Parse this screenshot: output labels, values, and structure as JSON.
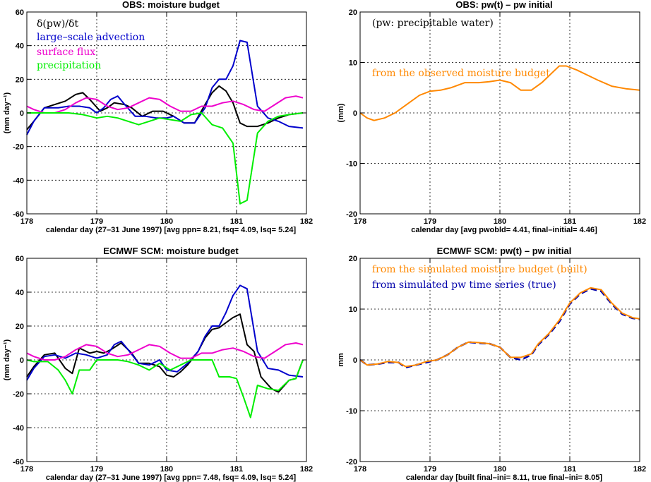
{
  "chart_data": [
    {
      "type": "line",
      "title": "OBS: moisture budget",
      "xlabel": "calendar day (27–31 June 1997)  [avg ppn=  8.21, fsq=  4.09, lsq=  5.24]",
      "ylabel": "(mm day⁻¹)",
      "xlim": [
        178,
        182
      ],
      "ylim": [
        -60,
        60
      ],
      "xticks": [
        "178",
        "179",
        "180",
        "181",
        "182"
      ],
      "yticks": [
        "-60",
        "-40",
        "-20",
        "0",
        "20",
        "40",
        "60"
      ],
      "grid": true,
      "legend": "top-left",
      "series": [
        {
          "name": "δ(pw)/δt",
          "color": "#000000",
          "dashed": false,
          "x": [
            178.0,
            178.1,
            178.25,
            178.4,
            178.55,
            178.7,
            178.8,
            178.9,
            179.05,
            179.15,
            179.25,
            179.4,
            179.5,
            179.65,
            179.8,
            179.95,
            180.1,
            180.25,
            180.4,
            180.55,
            180.65,
            180.75,
            180.85,
            180.95,
            181.05,
            181.15,
            181.3,
            181.45,
            181.6,
            181.75,
            181.95
          ],
          "values": [
            -10,
            -5,
            3,
            5,
            7,
            11,
            12,
            8,
            1,
            3,
            6,
            5,
            3,
            -2,
            1,
            1,
            -2,
            -6,
            -6,
            5,
            12,
            16,
            13,
            6,
            -6,
            -8,
            -8,
            -6,
            -3,
            -1,
            0
          ]
        },
        {
          "name": "large–scale advection",
          "color": "#0000cc",
          "dashed": false,
          "x": [
            178.0,
            178.1,
            178.25,
            178.45,
            178.6,
            178.75,
            178.9,
            179.0,
            179.1,
            179.2,
            179.3,
            179.4,
            179.55,
            179.7,
            179.85,
            180.0,
            180.1,
            180.25,
            180.4,
            180.55,
            180.65,
            180.75,
            180.85,
            180.95,
            181.05,
            181.15,
            181.3,
            181.45,
            181.6,
            181.75,
            181.95
          ],
          "values": [
            -13,
            -5,
            3,
            3,
            4,
            4,
            3,
            0,
            3,
            8,
            10,
            5,
            -2,
            -2,
            -3,
            -3,
            -2,
            -6,
            -6,
            3,
            15,
            20,
            20,
            28,
            43,
            42,
            4,
            -3,
            -5,
            -8,
            -9
          ]
        },
        {
          "name": "surface flux",
          "color": "#ee00cc",
          "dashed": false,
          "x": [
            178.0,
            178.1,
            178.25,
            178.4,
            178.55,
            178.7,
            178.85,
            179.0,
            179.15,
            179.3,
            179.45,
            179.6,
            179.75,
            179.9,
            180.05,
            180.2,
            180.35,
            180.5,
            180.65,
            180.8,
            180.95,
            181.1,
            181.25,
            181.4,
            181.55,
            181.7,
            181.85,
            181.95
          ],
          "values": [
            4,
            2,
            0,
            0,
            2,
            6,
            9,
            8,
            4,
            2,
            3,
            6,
            9,
            8,
            4,
            1,
            1,
            4,
            4,
            6,
            7,
            5,
            2,
            1,
            5,
            9,
            10,
            9
          ]
        },
        {
          "name": "precipitation",
          "color": "#00ee00",
          "dashed": false,
          "x": [
            178.0,
            178.2,
            178.4,
            178.6,
            178.8,
            179.0,
            179.15,
            179.3,
            179.45,
            179.6,
            179.75,
            179.9,
            180.05,
            180.2,
            180.35,
            180.5,
            180.65,
            180.8,
            180.95,
            181.05,
            181.15,
            181.3,
            181.45,
            181.6,
            181.75,
            181.95
          ],
          "values": [
            0,
            0,
            0,
            0,
            -1,
            -3,
            -2,
            -3,
            -5,
            -7,
            -5,
            -3,
            -4,
            -5,
            -1,
            0,
            -7,
            -9,
            -18,
            -54,
            -52,
            -12,
            -5,
            -2,
            -1,
            0
          ]
        }
      ]
    },
    {
      "type": "line",
      "title": "OBS: pw(t) – pw initial",
      "xlabel": "calendar day  [avg pwobld=  4.41, final–initial=  4.46]",
      "ylabel": "(mm)",
      "xlim": [
        178,
        182
      ],
      "ylim": [
        -20,
        20
      ],
      "xticks": [
        "178",
        "179",
        "180",
        "181",
        "182"
      ],
      "yticks": [
        "-20",
        "-10",
        "0",
        "10",
        "20"
      ],
      "grid": true,
      "annotations": [
        "(pw: precipitable water)",
        "from the observed moisture budget"
      ],
      "series": [
        {
          "name": "from the observed moisture budget",
          "color": "#ff8800",
          "dashed": false,
          "x": [
            178.0,
            178.1,
            178.2,
            178.35,
            178.5,
            178.7,
            178.85,
            179.0,
            179.15,
            179.3,
            179.5,
            179.7,
            179.85,
            180.0,
            180.15,
            180.3,
            180.45,
            180.6,
            180.75,
            180.85,
            180.95,
            181.1,
            181.25,
            181.4,
            181.6,
            181.8,
            182.0
          ],
          "values": [
            0,
            -1,
            -1.5,
            -1,
            0,
            2,
            3.5,
            4.3,
            4.5,
            5,
            6,
            6,
            6.2,
            6.5,
            6,
            4.5,
            4.5,
            6,
            8,
            9.3,
            9.3,
            8.5,
            7.5,
            6.5,
            5.3,
            4.8,
            4.5
          ]
        }
      ]
    },
    {
      "type": "line",
      "title": "ECMWF SCM: moisture budget",
      "xlabel": "calendar day (27–31 June 1997)  [avg ppn=  7.48, fsq=  4.09, lsq=  5.24]",
      "ylabel": "(mm day⁻¹)",
      "xlim": [
        178,
        182
      ],
      "ylim": [
        -60,
        60
      ],
      "xticks": [
        "178",
        "179",
        "180",
        "181",
        "182"
      ],
      "yticks": [
        "-60",
        "-40",
        "-20",
        "0",
        "20",
        "40",
        "60"
      ],
      "grid": true,
      "series": [
        {
          "name": "",
          "color": "#000000",
          "dashed": false,
          "x": [
            178.0,
            178.1,
            178.25,
            178.4,
            178.55,
            178.65,
            178.75,
            178.9,
            179.0,
            179.1,
            179.2,
            179.35,
            179.5,
            179.6,
            179.75,
            179.9,
            180.0,
            180.1,
            180.2,
            180.3,
            180.45,
            180.55,
            180.65,
            180.75,
            180.85,
            180.95,
            181.05,
            181.15,
            181.25,
            181.35,
            181.5,
            181.6,
            181.75,
            181.85,
            181.95
          ],
          "values": [
            -10,
            -4,
            3,
            4,
            -5,
            -8,
            7,
            4,
            5,
            4,
            6,
            10,
            4,
            -2,
            -2,
            -4,
            -9,
            -10,
            -7,
            -3,
            5,
            13,
            18,
            19,
            22,
            25,
            27,
            9,
            5,
            -10,
            -17,
            -19,
            -12,
            -11,
            0
          ]
        },
        {
          "name": "",
          "color": "#0000cc",
          "dashed": false,
          "x": [
            178.0,
            178.1,
            178.25,
            178.4,
            178.55,
            178.7,
            178.85,
            179.0,
            179.15,
            179.25,
            179.35,
            179.45,
            179.6,
            179.75,
            179.9,
            180.0,
            180.15,
            180.3,
            180.45,
            180.55,
            180.65,
            180.75,
            180.85,
            180.95,
            181.05,
            181.15,
            181.3,
            181.45,
            181.6,
            181.75,
            181.95
          ],
          "values": [
            -12,
            -5,
            2,
            3,
            1,
            4,
            3,
            1,
            3,
            9,
            11,
            6,
            -2,
            -3,
            0,
            -6,
            -7,
            -2,
            5,
            14,
            20,
            20,
            28,
            38,
            44,
            42,
            5,
            -5,
            -6,
            -9,
            -10
          ]
        },
        {
          "name": "",
          "color": "#ee00cc",
          "dashed": false,
          "x": [
            178.0,
            178.1,
            178.25,
            178.4,
            178.55,
            178.7,
            178.85,
            179.0,
            179.15,
            179.3,
            179.45,
            179.6,
            179.75,
            179.9,
            180.05,
            180.2,
            180.35,
            180.5,
            180.65,
            180.8,
            180.95,
            181.1,
            181.25,
            181.4,
            181.55,
            181.7,
            181.85,
            181.95
          ],
          "values": [
            4,
            2,
            0,
            0,
            2,
            6,
            9,
            8,
            4,
            2,
            3,
            6,
            9,
            8,
            4,
            1,
            1,
            4,
            4,
            6,
            7,
            5,
            2,
            1,
            5,
            9,
            10,
            9
          ]
        },
        {
          "name": "",
          "color": "#00ee00",
          "dashed": false,
          "x": [
            178.0,
            178.1,
            178.3,
            178.45,
            178.55,
            178.65,
            178.75,
            178.9,
            179.0,
            179.15,
            179.3,
            179.45,
            179.6,
            179.75,
            179.9,
            180.05,
            180.2,
            180.35,
            180.5,
            180.65,
            180.75,
            180.9,
            181.0,
            181.1,
            181.2,
            181.3,
            181.45,
            181.6,
            181.75,
            181.85,
            181.95
          ],
          "values": [
            0,
            -1,
            -1,
            -6,
            -12,
            -20,
            -6,
            -6,
            0,
            0,
            0,
            -1,
            -3,
            -6,
            -2,
            -6,
            -3,
            0,
            0,
            0,
            -10,
            -10,
            -11,
            -22,
            -34,
            -15,
            -17,
            -18,
            -12,
            -11,
            0
          ]
        }
      ]
    },
    {
      "type": "line",
      "title": "ECMWF SCM: pw(t) – pw initial",
      "xlabel": "calendar day  [built final–ini=  8.11, true final–ini=  8.05]",
      "ylabel": "mm",
      "xlim": [
        178,
        182
      ],
      "ylim": [
        -20,
        20
      ],
      "xticks": [
        "178",
        "179",
        "180",
        "181",
        "182"
      ],
      "yticks": [
        "-20",
        "-10",
        "0",
        "10",
        "20"
      ],
      "grid": true,
      "legend": "top-left",
      "series": [
        {
          "name": "from simulated pw time series (true)",
          "color": "#0000aa",
          "dashed": true,
          "x": [
            178.0,
            178.1,
            178.25,
            178.4,
            178.55,
            178.65,
            178.8,
            178.95,
            179.1,
            179.25,
            179.4,
            179.55,
            179.7,
            179.85,
            180.0,
            180.15,
            180.3,
            180.45,
            180.55,
            180.7,
            180.85,
            181.0,
            181.15,
            181.3,
            181.45,
            181.6,
            181.75,
            181.9,
            182.0
          ],
          "values": [
            0,
            -1,
            -0.8,
            -0.5,
            -0.5,
            -1.5,
            -1,
            -0.5,
            0,
            1,
            2.5,
            3.5,
            3.3,
            3.2,
            2.5,
            0.5,
            0,
            1,
            3,
            5,
            7.5,
            11,
            13,
            14,
            13.5,
            11,
            9,
            8.2,
            8
          ]
        },
        {
          "name": "from the simulated moisture budget (built)",
          "color": "#ff8800",
          "dashed": false,
          "x": [
            178.0,
            178.1,
            178.25,
            178.4,
            178.55,
            178.65,
            178.8,
            178.95,
            179.1,
            179.25,
            179.4,
            179.55,
            179.7,
            179.85,
            180.0,
            180.15,
            180.3,
            180.45,
            180.55,
            180.7,
            180.85,
            181.0,
            181.15,
            181.3,
            181.45,
            181.6,
            181.75,
            181.9,
            182.0
          ],
          "values": [
            0,
            -1,
            -0.8,
            -0.3,
            -0.5,
            -1.3,
            -1,
            -0.3,
            0,
            1,
            2.5,
            3.5,
            3.4,
            3.2,
            2.5,
            0.5,
            0.5,
            1.2,
            3.2,
            5.2,
            7.8,
            11.2,
            13.2,
            14.2,
            13.8,
            11.2,
            9.2,
            8.3,
            8.1
          ]
        }
      ]
    }
  ]
}
